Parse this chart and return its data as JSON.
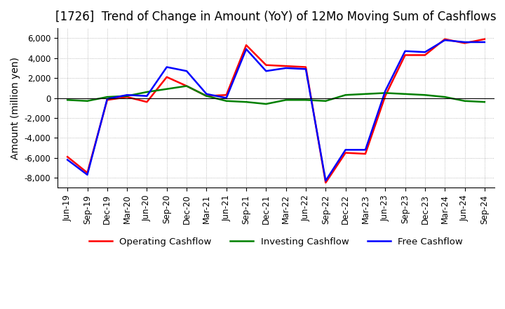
{
  "title": "[1726]  Trend of Change in Amount (YoY) of 12Mo Moving Sum of Cashflows",
  "ylabel": "Amount (million yen)",
  "ylim": [
    -9000,
    7000
  ],
  "yticks": [
    -8000,
    -6000,
    -4000,
    -2000,
    0,
    2000,
    4000,
    6000
  ],
  "x_labels": [
    "Jun-19",
    "Sep-19",
    "Dec-19",
    "Mar-20",
    "Jun-20",
    "Sep-20",
    "Dec-20",
    "Mar-21",
    "Jun-21",
    "Sep-21",
    "Dec-21",
    "Mar-22",
    "Jun-22",
    "Sep-22",
    "Dec-22",
    "Mar-23",
    "Jun-23",
    "Sep-23",
    "Dec-23",
    "Mar-24",
    "Jun-24",
    "Sep-24"
  ],
  "operating": [
    -5900,
    -7500,
    -200,
    100,
    -400,
    2100,
    1200,
    200,
    300,
    5300,
    3300,
    3200,
    3100,
    -8500,
    -5500,
    -5600,
    200,
    4300,
    4300,
    5900,
    5500,
    5900
  ],
  "investing": [
    -200,
    -300,
    100,
    200,
    600,
    900,
    1200,
    200,
    -300,
    -400,
    -600,
    -200,
    -200,
    -300,
    300,
    400,
    500,
    400,
    300,
    100,
    -300,
    -400
  ],
  "free": [
    -6200,
    -7700,
    -100,
    300,
    200,
    3100,
    2700,
    400,
    0,
    4900,
    2700,
    3000,
    2900,
    -8300,
    -5200,
    -5200,
    700,
    4700,
    4600,
    5800,
    5600,
    5600
  ],
  "operating_color": "#ff0000",
  "investing_color": "#008000",
  "free_color": "#0000ff",
  "background_color": "#ffffff",
  "grid_color": "#aaaaaa",
  "title_fontsize": 12,
  "axis_fontsize": 10,
  "tick_fontsize": 8.5,
  "legend_labels": [
    "Operating Cashflow",
    "Investing Cashflow",
    "Free Cashflow"
  ]
}
